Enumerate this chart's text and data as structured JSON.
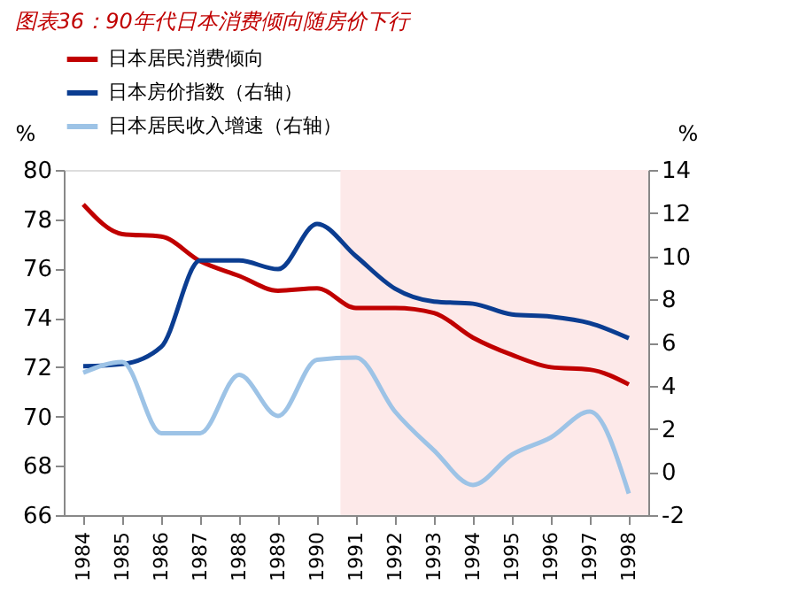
{
  "chart_data": {
    "type": "line",
    "title": "图表36：90年代日本消费倾向随房价下行",
    "x": [
      1984,
      1985,
      1986,
      1987,
      1988,
      1989,
      1990,
      1991,
      1992,
      1993,
      1994,
      1995,
      1996,
      1997,
      1998
    ],
    "xlim": [
      1983.5,
      1998.5
    ],
    "xticks": [
      1984,
      1985,
      1986,
      1987,
      1988,
      1989,
      1990,
      1991,
      1992,
      1993,
      1994,
      1995,
      1996,
      1997,
      1998
    ],
    "ylabel": "%",
    "y2label": "%",
    "ylim": [
      66,
      80
    ],
    "yticks": [
      66,
      68,
      70,
      72,
      74,
      76,
      78,
      80
    ],
    "y2lim": [
      -2,
      14
    ],
    "y2ticks": [
      -2,
      0,
      2,
      4,
      6,
      8,
      10,
      12,
      14
    ],
    "series": [
      {
        "name": "日本居民消费倾向",
        "color": "#c00000",
        "values": [
          78.6,
          77.4,
          77.3,
          76.3,
          75.7,
          75.1,
          75.2,
          74.4,
          74.4,
          74.2,
          73.2,
          72.5,
          72.0,
          71.9,
          71.3
        ]
      },
      {
        "name": "日本房价指数（右轴）",
        "color": "#0b3d91",
        "axis": "y2",
        "values": [
          4.9,
          5.0,
          5.8,
          9.8,
          9.8,
          9.4,
          11.5,
          10.0,
          8.5,
          7.9,
          7.8,
          7.3,
          7.2,
          6.9,
          6.2
        ]
      },
      {
        "name": "日本居民收入增速（右轴）",
        "color": "#9dc3e6",
        "axis": "y2",
        "values": [
          4.6,
          5.1,
          1.8,
          1.8,
          4.5,
          2.6,
          5.2,
          5.3,
          2.8,
          1.0,
          -0.6,
          0.8,
          1.6,
          2.8,
          -1.0
        ]
      }
    ],
    "bands": [
      {
        "axis": "x",
        "from": 1990.6,
        "to": 1998.5,
        "color": "#fde9e9"
      }
    ],
    "legend": "top",
    "grid": false,
    "marker": "none",
    "line_style": "solid"
  }
}
